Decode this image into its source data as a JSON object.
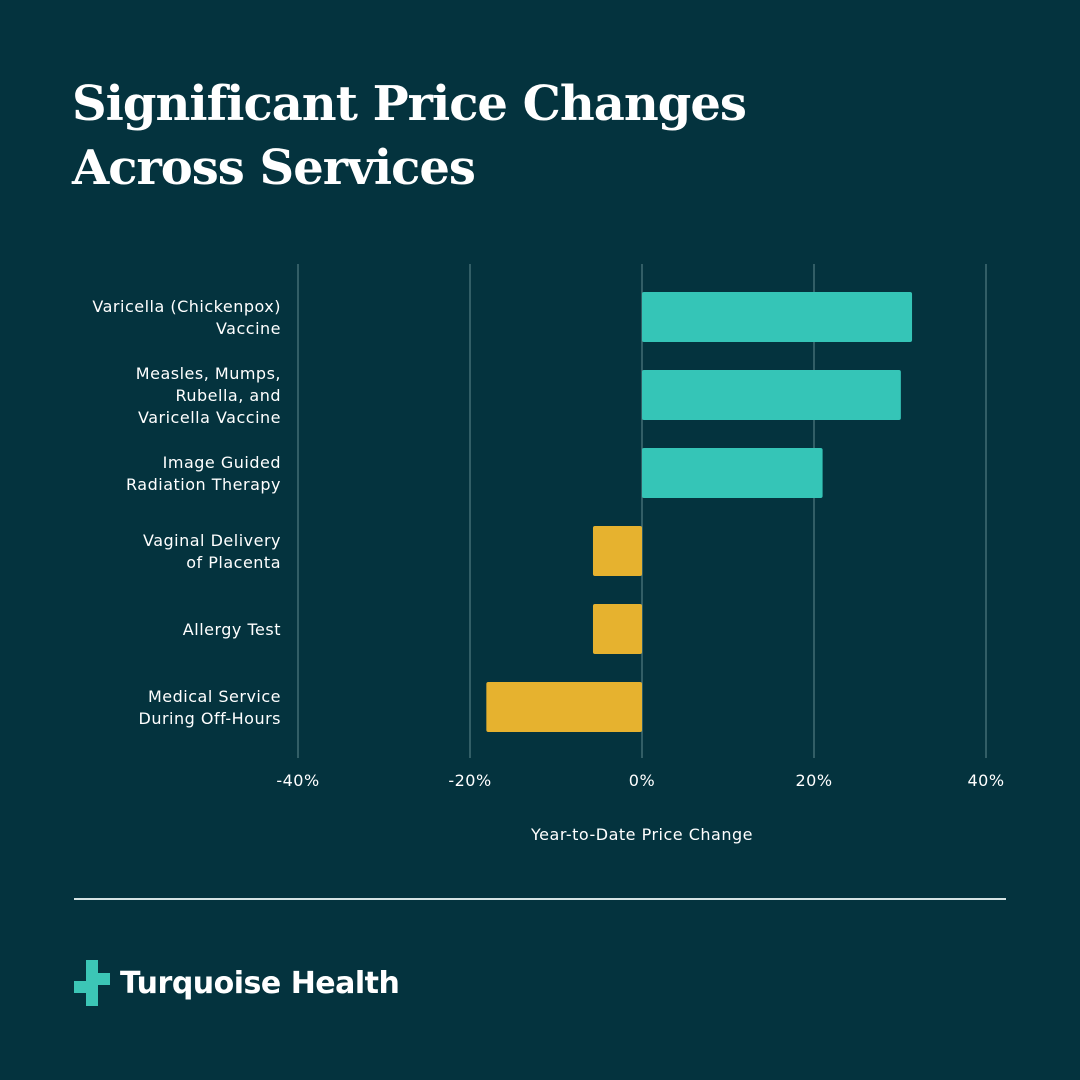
{
  "title": {
    "line1": "Significant Price Changes",
    "line2": "Across Services"
  },
  "brand": {
    "name": "Turquoise Health",
    "logo_icon": "medical-cross-icon",
    "logo_color": "#3cc6b6"
  },
  "colors": {
    "background": "#04333e",
    "positive": "#35c5b7",
    "negative": "#e6b22f",
    "grid": "#5f8a8e",
    "text": "#ffffff"
  },
  "chart_data": {
    "type": "bar",
    "orientation": "horizontal",
    "title": "Significant Price Changes Across Services",
    "xlabel": "Year-to-Date Price Change",
    "ylabel": "",
    "xlim": [
      -40,
      40
    ],
    "xticks": [
      -40,
      -20,
      0,
      20,
      40
    ],
    "xtick_labels": [
      "-40%",
      "-20%",
      "0%",
      "20%",
      "40%"
    ],
    "grid": true,
    "categories": [
      [
        "Varicella (Chickenpox)",
        "Vaccine"
      ],
      [
        "Measles, Mumps,",
        "Rubella, and",
        "Varicella Vaccine"
      ],
      [
        "Image Guided",
        "Radiation Therapy"
      ],
      [
        "Vaginal Delivery",
        "of Placenta"
      ],
      [
        "Allergy Test"
      ],
      [
        "Medical Service",
        "During Off-Hours"
      ]
    ],
    "values": [
      31.4,
      30.1,
      21.0,
      -5.7,
      -5.7,
      -18.1
    ]
  }
}
